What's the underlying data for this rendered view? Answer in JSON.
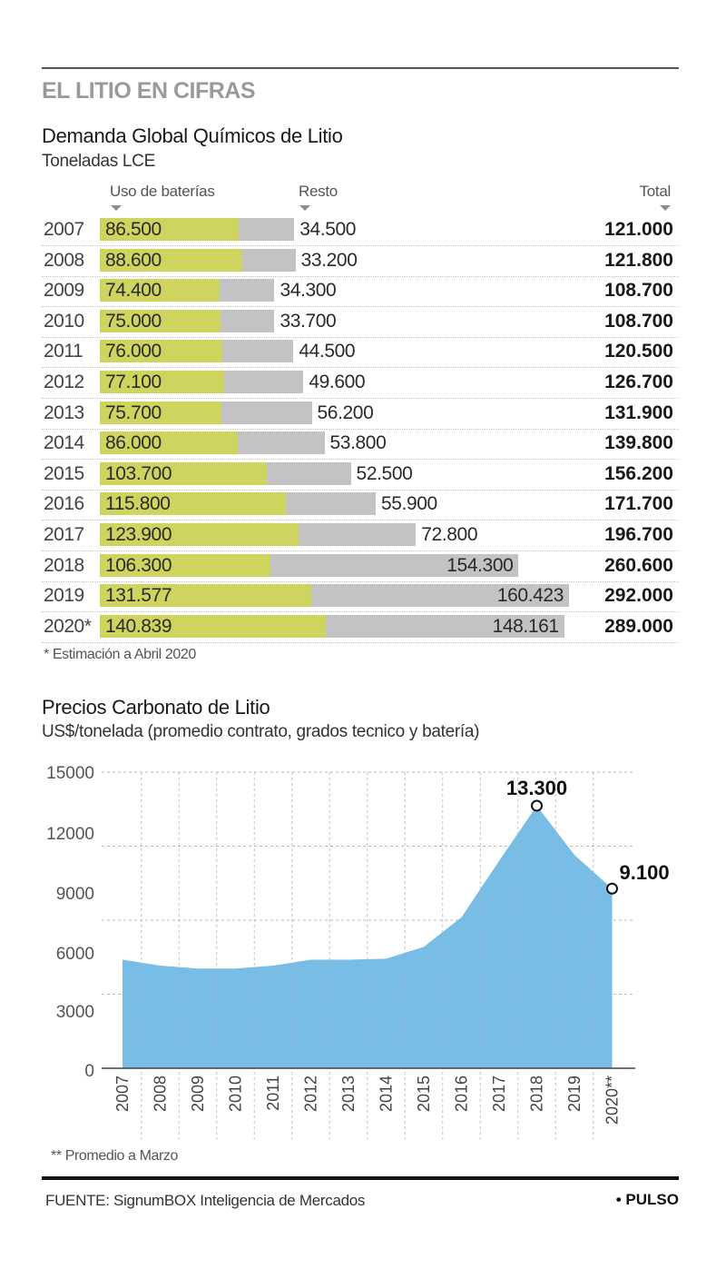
{
  "header": {
    "kicker": "EL LITIO EN CIFRAS"
  },
  "demand": {
    "title": "Demanda Global Químicos de Litio",
    "subtitle": "Toneladas LCE",
    "col_battery": "Uso de baterías",
    "col_rest": "Resto",
    "col_total": "Total",
    "footnote": "* Estimación a Abril 2020",
    "colors": {
      "battery": "#cfd45f",
      "rest": "#c3c3c5"
    }
  },
  "price": {
    "title": "Precios Carbonato de Litio",
    "subtitle": "US$/tonelada (promedio contrato, grados tecnico y batería)",
    "footnote": "** Promedio a Marzo",
    "colors": {
      "area": "#78bde6"
    }
  },
  "footer": {
    "source": "FUENTE: SignumBOX Inteligencia de Mercados",
    "brand": "• PULSO"
  },
  "chart_data": [
    {
      "type": "bar",
      "stacked": true,
      "orientation": "horizontal",
      "title": "Demanda Global Químicos de Litio",
      "subtitle": "Toneladas LCE",
      "categories": [
        "2007",
        "2008",
        "2009",
        "2010",
        "2011",
        "2012",
        "2013",
        "2014",
        "2015",
        "2016",
        "2017",
        "2018",
        "2019",
        "2020*"
      ],
      "series": [
        {
          "name": "Uso de baterías",
          "values": [
            86500,
            88600,
            74400,
            75000,
            76000,
            77100,
            75700,
            86000,
            103700,
            115800,
            123900,
            106300,
            131577,
            140839
          ],
          "labels": [
            "86.500",
            "88.600",
            "74.400",
            "75.000",
            "76.000",
            "77.100",
            "75.700",
            "86.000",
            "103.700",
            "115.800",
            "123.900",
            "106.300",
            "131.577",
            "140.839"
          ]
        },
        {
          "name": "Resto",
          "values": [
            34500,
            33200,
            34300,
            33700,
            44500,
            49600,
            56200,
            53800,
            52500,
            55900,
            72800,
            154300,
            160423,
            148161
          ],
          "labels": [
            "34.500",
            "33.200",
            "34.300",
            "33.700",
            "44.500",
            "49.600",
            "56.200",
            "53.800",
            "52.500",
            "55.900",
            "72.800",
            "154.300",
            "160.423",
            "148.161"
          ]
        }
      ],
      "totals": [
        121000,
        121800,
        108700,
        108700,
        120500,
        126700,
        131900,
        139800,
        156200,
        171700,
        196700,
        260600,
        292000,
        289000
      ],
      "total_labels": [
        "121.000",
        "121.800",
        "108.700",
        "108.700",
        "120.500",
        "126.700",
        "131.900",
        "139.800",
        "156.200",
        "171.700",
        "196.700",
        "260.600",
        "292.000",
        "289.000"
      ],
      "legend": [
        "Uso de baterías",
        "Resto",
        "Total"
      ],
      "legend_position": "top",
      "xlim": [
        0,
        292000
      ],
      "annotations": [
        "* Estimación a Abril 2020"
      ]
    },
    {
      "type": "area",
      "title": "Precios Carbonato de Litio",
      "ylabel": "US$/tonelada (promedio contrato, grados tecnico y batería)",
      "x": [
        "2007",
        "2008",
        "2009",
        "2010",
        "2011",
        "2012",
        "2013",
        "2014",
        "2015",
        "2016",
        "2017",
        "2018",
        "2019",
        "2020**"
      ],
      "values": [
        5500,
        5200,
        5050,
        5050,
        5200,
        5500,
        5500,
        5550,
        6150,
        7650,
        10500,
        13300,
        10800,
        9100
      ],
      "ylim": [
        0,
        15000
      ],
      "yticks": [
        0,
        3000,
        6000,
        9000,
        12000,
        15000
      ],
      "grid": true,
      "data_labels": [
        {
          "x": "2018",
          "value": 13300,
          "label": "13.300"
        },
        {
          "x": "2020**",
          "value": 9100,
          "label": "9.100"
        }
      ],
      "annotations": [
        "** Promedio a Marzo"
      ]
    }
  ]
}
